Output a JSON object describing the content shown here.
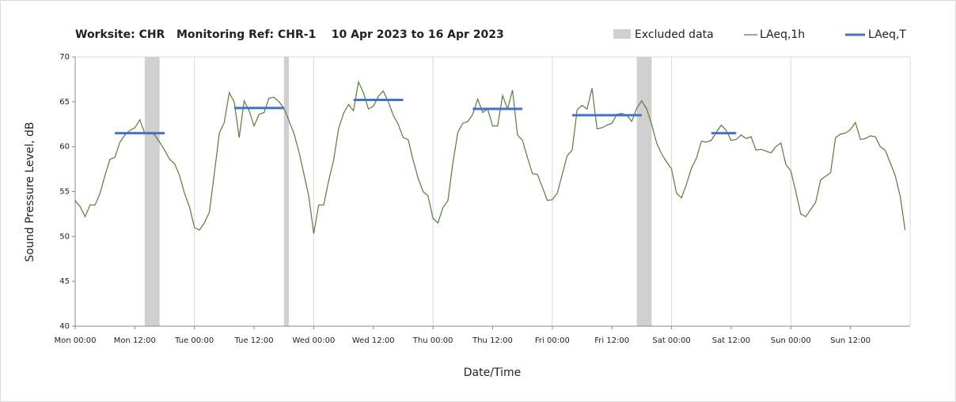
{
  "chart_data": {
    "type": "line",
    "title": "Worksite: CHR   Monitoring Ref: CHR-1    10 Apr 2023 to 16 Apr 2023",
    "y_label": "Sound Pressure Level, dB",
    "x_label": "Date/Time",
    "xlim": [
      0,
      168
    ],
    "ylim": [
      40,
      70
    ],
    "yticks": [
      40,
      45,
      50,
      55,
      60,
      65,
      70
    ],
    "xticks": [
      {
        "value": 0,
        "label": "Mon 00:00"
      },
      {
        "value": 12,
        "label": "Mon 12:00"
      },
      {
        "value": 24,
        "label": "Tue 00:00"
      },
      {
        "value": 36,
        "label": "Tue 12:00"
      },
      {
        "value": 48,
        "label": "Wed 00:00"
      },
      {
        "value": 60,
        "label": "Wed 12:00"
      },
      {
        "value": 72,
        "label": "Thu 00:00"
      },
      {
        "value": 84,
        "label": "Thu 12:00"
      },
      {
        "value": 96,
        "label": "Fri 00:00"
      },
      {
        "value": 108,
        "label": "Fri 12:00"
      },
      {
        "value": 120,
        "label": "Sat 00:00"
      },
      {
        "value": 132,
        "label": "Sat 12:00"
      },
      {
        "value": 144,
        "label": "Sun 00:00"
      },
      {
        "value": 156,
        "label": "Sun 12:00"
      }
    ],
    "excluded": {
      "name": "Excluded data",
      "color": "#d0d0d0",
      "ranges": [
        [
          14,
          17
        ],
        [
          42,
          43
        ],
        [
          113,
          116
        ]
      ]
    },
    "x": [
      0,
      1,
      2,
      3,
      4,
      5,
      6,
      7,
      8,
      9,
      10,
      11,
      12,
      13,
      14,
      15,
      16,
      17,
      18,
      19,
      20,
      21,
      22,
      23,
      24,
      25,
      26,
      27,
      28,
      29,
      30,
      31,
      32,
      33,
      34,
      35,
      36,
      37,
      38,
      39,
      40,
      41,
      42,
      43,
      44,
      45,
      46,
      47,
      48,
      49,
      50,
      51,
      52,
      53,
      54,
      55,
      56,
      57,
      58,
      59,
      60,
      61,
      62,
      63,
      64,
      65,
      66,
      67,
      68,
      69,
      70,
      71,
      72,
      73,
      74,
      75,
      76,
      77,
      78,
      79,
      80,
      81,
      82,
      83,
      84,
      85,
      86,
      87,
      88,
      89,
      90,
      91,
      92,
      93,
      94,
      95,
      96,
      97,
      98,
      99,
      100,
      101,
      102,
      103,
      104,
      105,
      106,
      107,
      108,
      109,
      110,
      111,
      112,
      113,
      114,
      115,
      116,
      117,
      118,
      119,
      120,
      121,
      122,
      123,
      124,
      125,
      126,
      127,
      128,
      129,
      130,
      131,
      132,
      133,
      134,
      135,
      136,
      137,
      138,
      139,
      140,
      141,
      142,
      143,
      144,
      145,
      146,
      147,
      148,
      149,
      150,
      151,
      152,
      153,
      154,
      155,
      156,
      157,
      158,
      159,
      160,
      161,
      162,
      163,
      164,
      165,
      166,
      167
    ],
    "series": [
      {
        "name": "LAeq,1h",
        "color": "#5b7b3c",
        "values": [
          54,
          53.3,
          52.2,
          53.5,
          53.5,
          54.8,
          56.8,
          58.6,
          58.8,
          60.5,
          61.3,
          61.8,
          62.1,
          63,
          61.5,
          61.6,
          61.3,
          60.5,
          59.6,
          58.6,
          58.1,
          56.8,
          54.8,
          53.3,
          51,
          50.7,
          51.5,
          52.7,
          57,
          61.5,
          62.7,
          66,
          65,
          61,
          65.1,
          64,
          62.3,
          63.6,
          63.8,
          65.4,
          65.5,
          65,
          64.3,
          62.9,
          61.5,
          59.5,
          57,
          54.5,
          50.3,
          53.5,
          53.5,
          56.2,
          58.5,
          62,
          63.7,
          64.7,
          64,
          67.2,
          66,
          64.2,
          64.5,
          65.6,
          66.2,
          65,
          63.5,
          62.5,
          61,
          60.8,
          58.5,
          56.5,
          55,
          54.5,
          52,
          51.5,
          53.2,
          54,
          58.2,
          61.6,
          62.6,
          62.8,
          63.6,
          65.3,
          63.8,
          64.2,
          62.3,
          62.3,
          65.7,
          64.2,
          66.3,
          61.3,
          60.7,
          58.8,
          57,
          56.9,
          55.5,
          54,
          54.1,
          54.8,
          56.9,
          59,
          59.6,
          64.1,
          64.6,
          64.2,
          66.5,
          62,
          62.1,
          62.4,
          62.6,
          63.6,
          63.7,
          63.5,
          62.8,
          64.3,
          65.1,
          64.2,
          62.5,
          60.4,
          59.2,
          58.3,
          57.5,
          54.8,
          54.3,
          55.8,
          57.6,
          58.7,
          60.6,
          60.5,
          60.7,
          61.6,
          62.4,
          61.8,
          60.7,
          60.8,
          61.3,
          60.9,
          61.1,
          59.6,
          59.7,
          59.5,
          59.3,
          60,
          60.4,
          58,
          57.3,
          55,
          52.5,
          52.2,
          53,
          53.8,
          56.3,
          56.7,
          57.1,
          61,
          61.4,
          61.5,
          61.9,
          62.7,
          60.8,
          60.9,
          61.2,
          61.1,
          60,
          59.6,
          58.2,
          56.8,
          54.5,
          50.7
        ]
      }
    ],
    "period": {
      "name": "LAeq,T",
      "color": "#4472c4",
      "segments": [
        {
          "start": 8,
          "end": 18,
          "value": 61.5
        },
        {
          "start": 32,
          "end": 42,
          "value": 64.3
        },
        {
          "start": 56,
          "end": 66,
          "value": 65.2
        },
        {
          "start": 80,
          "end": 90,
          "value": 64.2
        },
        {
          "start": 100,
          "end": 114,
          "value": 63.5
        },
        {
          "start": 128,
          "end": 133,
          "value": 61.5
        }
      ]
    }
  }
}
